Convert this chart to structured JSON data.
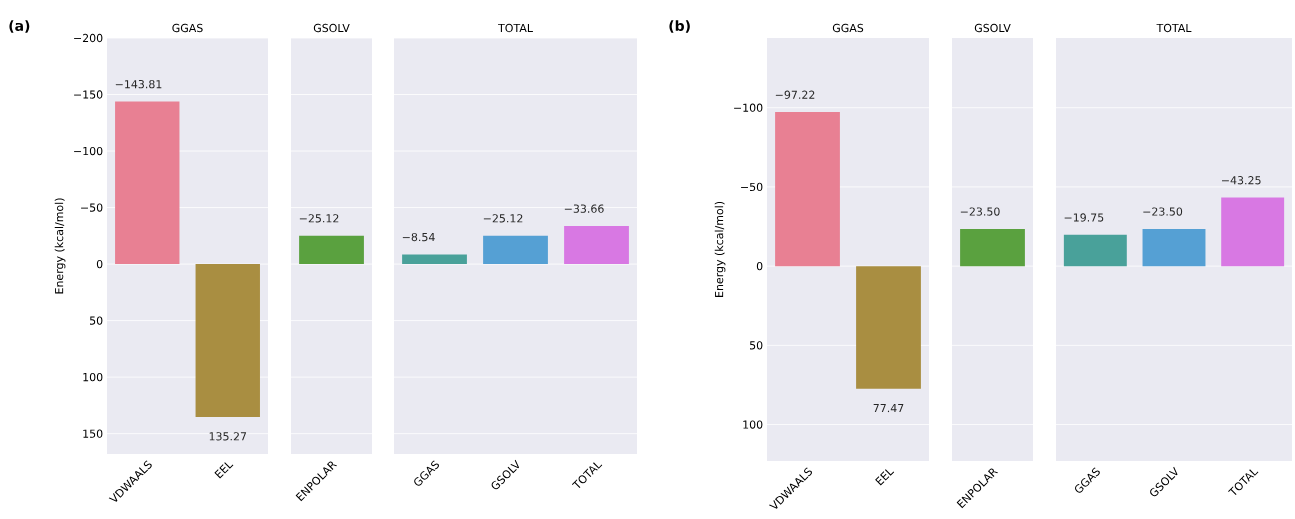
{
  "chart_data": [
    {
      "type": "bar",
      "title": "GGAS",
      "ylabel": "Energy (kcal/mol)",
      "annotations": [
        "(a)"
      ],
      "categories": [
        "VDWAALS",
        "EEL"
      ],
      "values": [
        -143.81,
        135.27
      ],
      "colors": [
        "#e88093",
        "#a98e41"
      ],
      "value_labels": [
        "−143.81",
        "135.27"
      ],
      "ylim": [
        168,
        -200
      ],
      "yticks": [
        {
          "value": -200,
          "label": "−200"
        },
        {
          "value": -150,
          "label": "−150"
        },
        {
          "value": -100,
          "label": "−100"
        },
        {
          "value": -50,
          "label": "−50"
        },
        0,
        50,
        100,
        150
      ],
      "grid": "y"
    },
    {
      "type": "bar",
      "title": "GSOLV",
      "categories": [
        "ENPOLAR"
      ],
      "values": [
        -25.12
      ],
      "colors": [
        "#5aa13f"
      ],
      "value_labels": [
        "−25.12"
      ],
      "ylim": [
        168,
        -200
      ],
      "yticks": [
        -200,
        -150,
        -100,
        -50,
        0,
        50,
        100,
        150
      ],
      "grid": "y",
      "tick_labels": "x"
    },
    {
      "type": "bar",
      "title": "TOTAL",
      "categories": [
        "GGAS",
        "GSOLV",
        "TOTAL"
      ],
      "values": [
        -8.54,
        -25.12,
        -33.66
      ],
      "colors": [
        "#49a19a",
        "#55a0d4",
        "#d878e3"
      ],
      "value_labels": [
        "−8.54",
        "−25.12",
        "−33.66"
      ],
      "ylim": [
        168,
        -200
      ],
      "yticks": [
        -200,
        -150,
        -100,
        -50,
        0,
        50,
        100,
        150
      ],
      "grid": "y",
      "tick_labels": "x"
    },
    {
      "type": "bar",
      "title": "GGAS",
      "ylabel": "Energy (kcal/mol)",
      "annotations": [
        "(b)"
      ],
      "categories": [
        "VDWAALS",
        "EEL"
      ],
      "values": [
        -97.22,
        77.47
      ],
      "colors": [
        "#e88093",
        "#a98e41"
      ],
      "value_labels": [
        "−97.22",
        "77.47"
      ],
      "ylim": [
        123,
        -144
      ],
      "yticks": [
        {
          "value": -100,
          "label": "−100"
        },
        {
          "value": -50,
          "label": "−50"
        },
        0,
        50,
        100
      ],
      "grid": "y"
    },
    {
      "type": "bar",
      "title": "GSOLV",
      "categories": [
        "ENPOLAR"
      ],
      "values": [
        -23.5
      ],
      "colors": [
        "#5aa13f"
      ],
      "value_labels": [
        "−23.50"
      ],
      "ylim": [
        123,
        -144
      ],
      "yticks": [
        -100,
        -50,
        0,
        50,
        100
      ],
      "grid": "y",
      "tick_labels": "x"
    },
    {
      "type": "bar",
      "title": "TOTAL",
      "categories": [
        "GGAS",
        "GSOLV",
        "TOTAL"
      ],
      "values": [
        -19.75,
        -23.5,
        -43.25
      ],
      "colors": [
        "#49a19a",
        "#55a0d4",
        "#d878e3"
      ],
      "value_labels": [
        "−19.75",
        "−23.50",
        "−43.25"
      ],
      "ylim": [
        123,
        -144
      ],
      "yticks": [
        -100,
        -50,
        0,
        50,
        100
      ],
      "grid": "y",
      "tick_labels": "x"
    }
  ]
}
